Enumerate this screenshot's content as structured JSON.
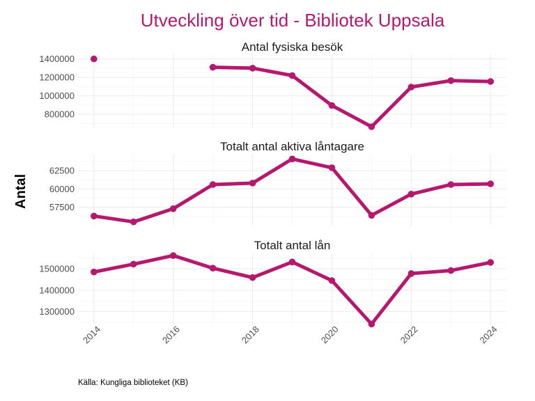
{
  "title": "Utveckling över tid - Bibliotek Uppsala",
  "ylabel": "Antal",
  "caption": "Källa: Kungliga biblioteket (KB)",
  "colors": {
    "series": "#b5196e",
    "title": "#b5196e"
  },
  "chart_data": {
    "type": "line",
    "x": [
      2014,
      2015,
      2016,
      2017,
      2018,
      2019,
      2020,
      2021,
      2022,
      2023,
      2024
    ],
    "xlim": [
      2013.6,
      2024.4
    ],
    "xticks": [
      2014,
      2016,
      2018,
      2020,
      2022,
      2024
    ],
    "panels": [
      {
        "title": "Antal fysiska besök",
        "values": [
          1400000,
          null,
          null,
          1310000,
          1300000,
          1220000,
          895000,
          665000,
          1095000,
          1165000,
          1155000
        ],
        "ylim": [
          650000,
          1450000
        ],
        "yticks": [
          800000,
          1000000,
          1200000,
          1400000
        ]
      },
      {
        "title": "Totalt antal aktiva låntagare",
        "values": [
          56300,
          55500,
          57300,
          60600,
          60800,
          64100,
          62900,
          56400,
          59300,
          60600,
          60700
        ],
        "ylim": [
          55000,
          64700
        ],
        "yticks": [
          57500,
          60000,
          62500
        ]
      },
      {
        "title": "Totalt antal lån",
        "values": [
          1485000,
          1522000,
          1562000,
          1503000,
          1459000,
          1532000,
          1445000,
          1242000,
          1478000,
          1492000,
          1530000
        ],
        "ylim": [
          1237000,
          1572000
        ],
        "yticks": [
          1300000,
          1400000,
          1500000
        ]
      }
    ]
  }
}
